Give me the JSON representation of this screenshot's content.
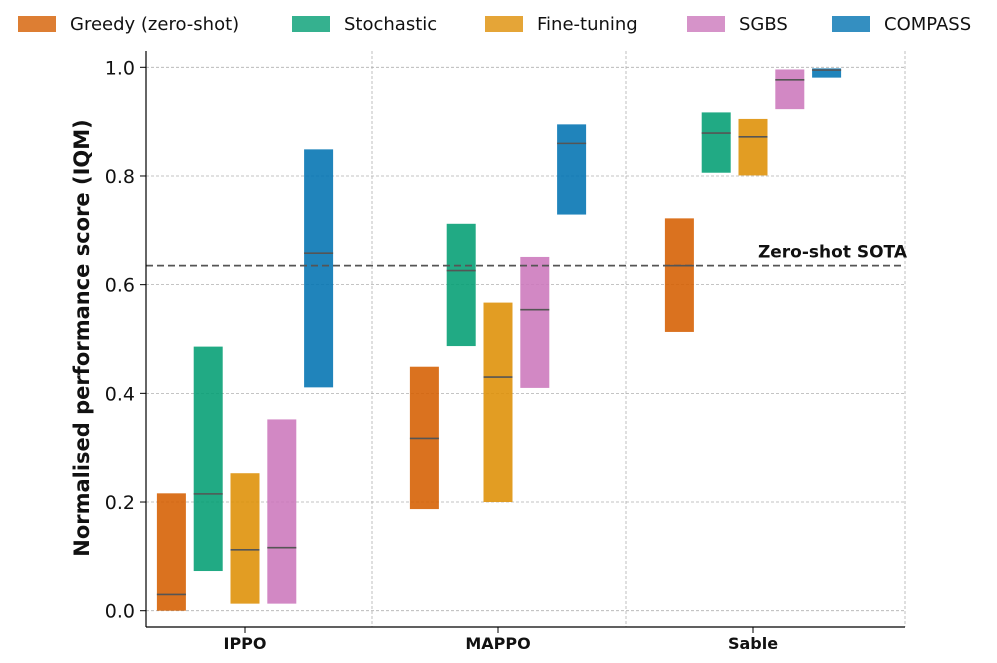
{
  "chart_data": {
    "type": "box",
    "ylabel": "Normalised performance score (IQM)",
    "xlabel": "",
    "ylim": [
      -0.03,
      1.03
    ],
    "yticks": [
      "0.0",
      "0.2",
      "0.4",
      "0.6",
      "0.8",
      "1.0"
    ],
    "grid": true,
    "legend_position": "top",
    "categories": [
      "IPPO",
      "MAPPO",
      "Sable"
    ],
    "series": [
      {
        "name": "Greedy (zero-shot)",
        "color": "#d55e00",
        "boxes": [
          [
            0.0,
            0.216,
            0.03
          ],
          [
            0.187,
            0.449,
            0.317
          ],
          [
            0.513,
            0.722,
            0.635
          ]
        ]
      },
      {
        "name": "Stochastic",
        "color": "#029e73",
        "boxes": [
          [
            0.073,
            0.486,
            0.215
          ],
          [
            0.487,
            0.712,
            0.626
          ],
          [
            0.806,
            0.917,
            0.879
          ]
        ]
      },
      {
        "name": "Fine-tuning",
        "color": "#de8f05",
        "boxes": [
          [
            0.013,
            0.253,
            0.112
          ],
          [
            0.2,
            0.567,
            0.43
          ],
          [
            0.801,
            0.905,
            0.872
          ]
        ]
      },
      {
        "name": "SGBS",
        "color": "#cc78bc",
        "boxes": [
          [
            0.013,
            0.352,
            0.116
          ],
          [
            0.41,
            0.651,
            0.554
          ],
          [
            0.923,
            0.996,
            0.977
          ]
        ]
      },
      {
        "name": "COMPASS",
        "color": "#0173b2",
        "boxes": [
          [
            0.411,
            0.849,
            0.658
          ],
          [
            0.729,
            0.895,
            0.86
          ],
          [
            0.981,
            0.998,
            0.995
          ]
        ]
      }
    ],
    "reference_line": {
      "value": 0.635,
      "label": "Zero-shot SOTA"
    }
  }
}
